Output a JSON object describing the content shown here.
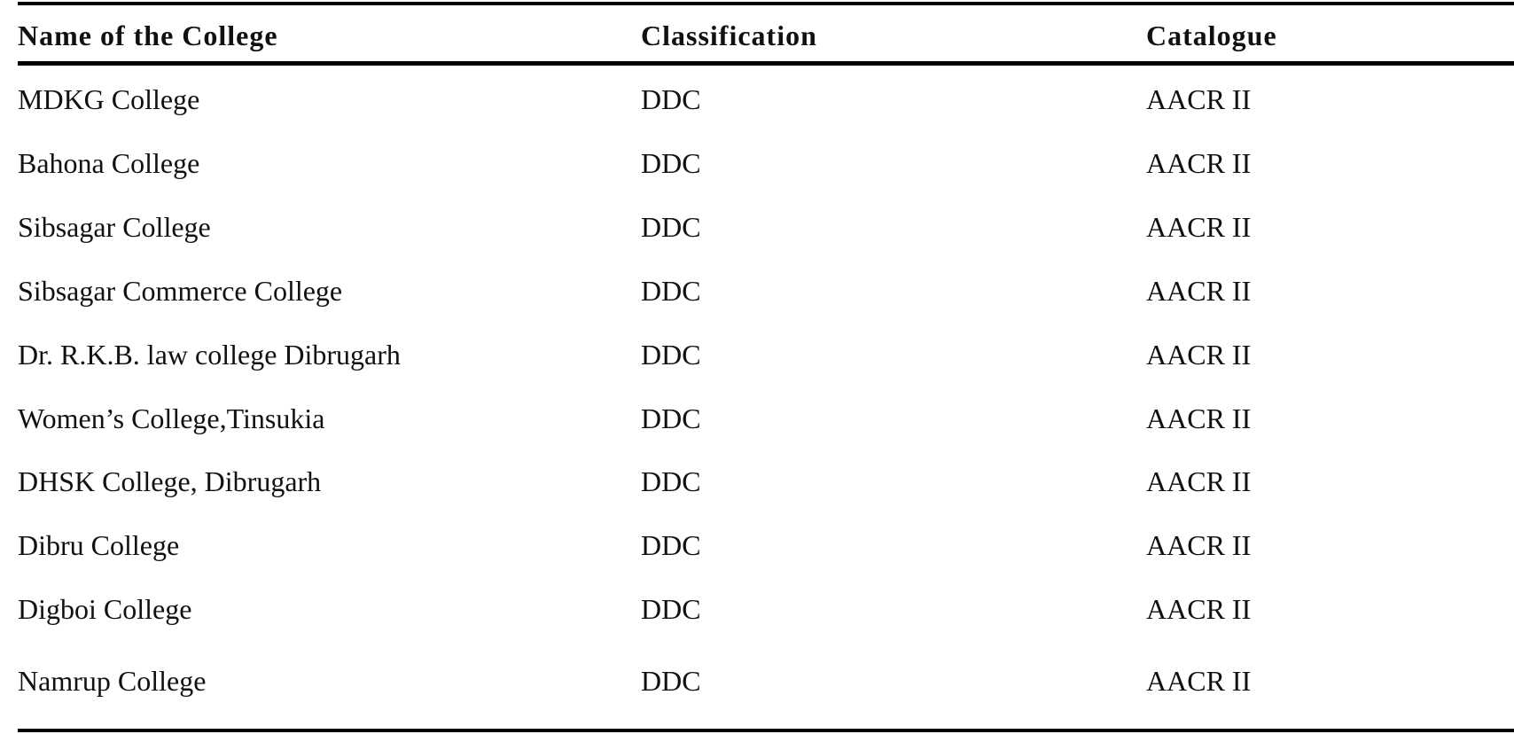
{
  "table": {
    "headers": [
      "Name of the College",
      "Classification",
      "Catalogue"
    ],
    "rows": [
      [
        "MDKG College",
        "DDC",
        "AACR II"
      ],
      [
        "Bahona College",
        "DDC",
        "AACR II"
      ],
      [
        "Sibsagar College",
        "DDC",
        "AACR II"
      ],
      [
        "Sibsagar Commerce College",
        "DDC",
        "AACR II"
      ],
      [
        "Dr. R.K.B. law college Dibrugarh",
        "DDC",
        "AACR II"
      ],
      [
        "Women’s College,Tinsukia",
        "DDC",
        "AACR II"
      ],
      [
        "DHSK College, Dibrugarh",
        "DDC",
        "AACR II"
      ],
      [
        "Dibru College",
        "DDC",
        "AACR II"
      ],
      [
        "Digboi College",
        "DDC",
        "AACR II"
      ],
      [
        "Namrup College",
        "DDC",
        "AACR II"
      ]
    ]
  }
}
